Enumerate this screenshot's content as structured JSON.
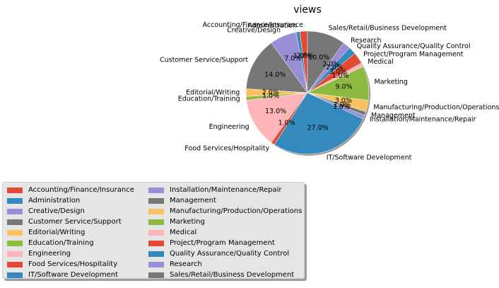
{
  "chart_data": {
    "type": "pie",
    "title": "views",
    "labels": [
      "Accounting/Finance/Insurance",
      "Administration",
      "Creative/Design",
      "Customer Service/Support",
      "Editorial/Writing",
      "Education/Training",
      "Engineering",
      "Food Services/Hospitality",
      "IT/Software Development",
      "Installation/Maintenance/Repair",
      "Management",
      "Manufacturing/Production/Operations",
      "Marketing",
      "Medical",
      "Project/Program Management",
      "Quality Assurance/Quality Control",
      "Research",
      "Sales/Retail/Business Development"
    ],
    "values": [
      2.0,
      1.0,
      7.0,
      14.0,
      2.0,
      1.0,
      13.0,
      1.0,
      27.0,
      1.0,
      1.0,
      3.0,
      9.0,
      1.0,
      3.0,
      2.0,
      2.0,
      10.0
    ],
    "pct_labels": [
      "2.0%",
      "1.0%",
      "7.0%",
      "14.0%",
      "2.0%",
      "1.0%",
      "13.0%",
      "1.0%",
      "27.0%",
      "1.0%",
      "1.0%",
      "3.0%",
      "9.0%",
      "1.0%",
      "3.0%",
      "2.0%",
      "2.0%",
      "10.0%"
    ],
    "colors": [
      "#E24A33",
      "#348ABD",
      "#988ED5",
      "#777777",
      "#FBC15E",
      "#8EBA42",
      "#FFB5B8",
      "#E24A33",
      "#348ABD",
      "#988ED5",
      "#777777",
      "#FBC15E",
      "#8EBA42",
      "#FFB5B8",
      "#E24A33",
      "#348ABD",
      "#988ED5",
      "#777777"
    ],
    "start_angle_deg": 90,
    "direction": "counterclockwise",
    "shadow": true,
    "legend_placement": "lower-left"
  }
}
